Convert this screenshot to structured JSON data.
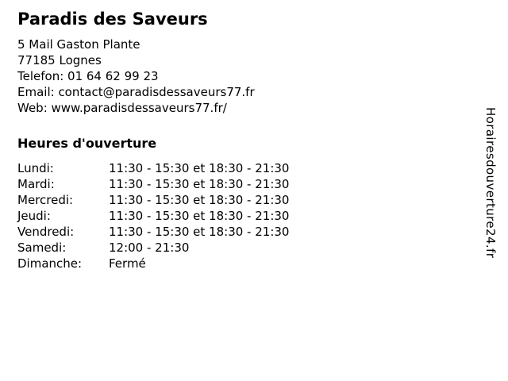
{
  "page": {
    "title": "Paradis des Saveurs",
    "contact": {
      "address_line_1": "5 Mail Gaston Plante",
      "address_line_2": "77185 Lognes",
      "phone_line": "Telefon: 01 64 62 99 23",
      "email_line": "Email: contact@paradisdessaveurs77.fr",
      "web_line": "Web: www.paradisdessaveurs77.fr/"
    },
    "hours": {
      "heading": "Heures d'ouverture",
      "rows": [
        {
          "day": "Lundi:",
          "time": "11:30 - 15:30 et 18:30 - 21:30"
        },
        {
          "day": "Mardi:",
          "time": "11:30 - 15:30 et 18:30 - 21:30"
        },
        {
          "day": "Mercredi:",
          "time": "11:30 - 15:30 et 18:30 - 21:30"
        },
        {
          "day": "Jeudi:",
          "time": "11:30 - 15:30 et 18:30 - 21:30"
        },
        {
          "day": "Vendredi:",
          "time": "11:30 - 15:30 et 18:30 - 21:30"
        },
        {
          "day": "Samedi:",
          "time": "12:00 - 21:30"
        },
        {
          "day": "Dimanche:",
          "time": "Fermé"
        }
      ]
    },
    "watermark": "Horairesdouverture24.fr",
    "colors": {
      "text": "#000000",
      "background": "#ffffff"
    }
  }
}
